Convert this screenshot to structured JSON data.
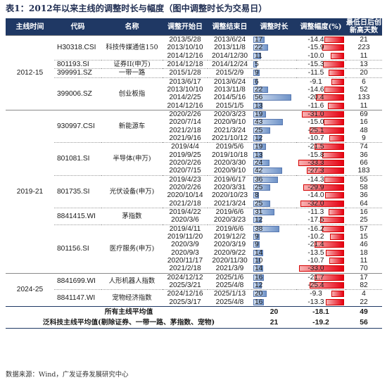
{
  "title": "表1：2012年以来主线的调整时长与幅度（图中调整时长为交易日）",
  "headers": [
    "主线时间",
    "代码",
    "名称",
    "调整开始日",
    "调整结束日",
    "调整时长",
    "调整幅度(%)",
    "最低日后创新高天数"
  ],
  "groups": [
    {
      "period": "2012-15",
      "indices": [
        {
          "code": "H30318.CSI",
          "name": "科技传媒通信150",
          "rows": [
            {
              "start": "2013/5/28",
              "end": "2013/6/24",
              "duration": 17,
              "amp": "-14.4",
              "amp_value": -14.4,
              "newhigh": "21"
            },
            {
              "start": "2013/10/10",
              "end": "2013/11/8",
              "duration": 22,
              "amp": "-15.9",
              "amp_value": -15.9,
              "newhigh": "223"
            },
            {
              "start": "2014/12/16",
              "end": "2014/12/30",
              "duration": 11,
              "amp": "-10.0",
              "amp_value": -10.0,
              "newhigh": "11"
            }
          ]
        },
        {
          "code": "801193.SI",
          "name": "证券II(申万)",
          "rows": [
            {
              "start": "2014/12/18",
              "end": "2014/12/24",
              "duration": 5,
              "amp": "-15.3",
              "amp_value": -15.3,
              "newhigh": "13"
            }
          ]
        },
        {
          "code": "399991.SZ",
          "name": "一带一路",
          "rows": [
            {
              "start": "2015/1/28",
              "end": "2015/2/9",
              "duration": 9,
              "amp": "-11.5",
              "amp_value": -11.5,
              "newhigh": "20"
            }
          ]
        },
        {
          "code": "399006.SZ",
          "name": "创业板指",
          "rows": [
            {
              "start": "2013/6/17",
              "end": "2013/6/24",
              "duration": 6,
              "amp": "-9.1",
              "amp_value": -9.1,
              "newhigh": "6"
            },
            {
              "start": "2013/10/10",
              "end": "2013/11/8",
              "duration": 22,
              "amp": "-14.6",
              "amp_value": -14.6,
              "newhigh": "52"
            },
            {
              "start": "2014/2/25",
              "end": "2014/5/16",
              "duration": 56,
              "amp": "-20.4",
              "amp_value": -20.4,
              "newhigh": "133"
            },
            {
              "start": "2014/12/16",
              "end": "2015/1/5",
              "duration": 13,
              "amp": "-11.6",
              "amp_value": -11.6,
              "newhigh": "11"
            }
          ]
        }
      ]
    },
    {
      "period": "2019-21",
      "indices": [
        {
          "code": "930997.CSI",
          "name": "新能源车",
          "rows": [
            {
              "start": "2020/2/26",
              "end": "2020/3/23",
              "duration": 19,
              "amp": "-31.0",
              "amp_value": -31.0,
              "newhigh": "69"
            },
            {
              "start": "2020/7/14",
              "end": "2020/9/10",
              "duration": 43,
              "amp": "-15.0",
              "amp_value": -15.0,
              "newhigh": "16"
            },
            {
              "start": "2021/2/18",
              "end": "2021/3/24",
              "duration": 25,
              "amp": "-25.1",
              "amp_value": -25.1,
              "newhigh": "48"
            },
            {
              "start": "2021/9/16",
              "end": "2021/10/12",
              "duration": 12,
              "amp": "-10.7",
              "amp_value": -10.7,
              "newhigh": "9"
            }
          ]
        },
        {
          "code": "801081.SI",
          "name": "半导体(申万)",
          "rows": [
            {
              "start": "2019/4/4",
              "end": "2019/5/6",
              "duration": 19,
              "amp": "-21.5",
              "amp_value": -21.5,
              "newhigh": "74"
            },
            {
              "start": "2019/9/25",
              "end": "2019/10/18",
              "duration": 13,
              "amp": "-15.8",
              "amp_value": -15.8,
              "newhigh": "36"
            },
            {
              "start": "2020/2/26",
              "end": "2020/3/30",
              "duration": 24,
              "amp": "-33.3",
              "amp_value": -33.3,
              "newhigh": "66"
            },
            {
              "start": "2020/7/15",
              "end": "2020/9/10",
              "duration": 42,
              "amp": "-27.3",
              "amp_value": -27.3,
              "newhigh": "183"
            }
          ]
        },
        {
          "code": "801735.SI",
          "name": "光伏设备(申万)",
          "rows": [
            {
              "start": "2019/4/23",
              "end": "2019/6/17",
              "duration": 36,
              "amp": "-14.3",
              "amp_value": -14.3,
              "newhigh": "55"
            },
            {
              "start": "2020/2/26",
              "end": "2020/3/31",
              "duration": 25,
              "amp": "-29.9",
              "amp_value": -29.9,
              "newhigh": "58"
            },
            {
              "start": "2020/10/14",
              "end": "2020/10/23",
              "duration": 8,
              "amp": "-14.0",
              "amp_value": -14.0,
              "newhigh": "36"
            },
            {
              "start": "2021/2/18",
              "end": "2021/3/24",
              "duration": 25,
              "amp": "-32.0",
              "amp_value": -32.0,
              "newhigh": "64"
            }
          ]
        },
        {
          "code": "8841415.WI",
          "name": "茅指数",
          "rows": [
            {
              "start": "2019/4/22",
              "end": "2019/6/6",
              "duration": 31,
              "amp": "-11.3",
              "amp_value": -11.3,
              "newhigh": "16"
            },
            {
              "start": "2020/3/6",
              "end": "2020/3/23",
              "duration": 12,
              "amp": "-17.5",
              "amp_value": -17.5,
              "newhigh": "25"
            }
          ]
        },
        {
          "code": "801156.SI",
          "name": "医疗服务(申万)",
          "rows": [
            {
              "start": "2019/4/11",
              "end": "2019/6/6",
              "duration": 38,
              "amp": "-16.2",
              "amp_value": -16.2,
              "newhigh": "57"
            },
            {
              "start": "2019/11/20",
              "end": "2019/12/2",
              "duration": 9,
              "amp": "-10.2",
              "amp_value": -10.2,
              "newhigh": "15"
            },
            {
              "start": "2020/3/9",
              "end": "2020/3/19",
              "duration": 9,
              "amp": "-21.4",
              "amp_value": -21.4,
              "newhigh": "46"
            },
            {
              "start": "2020/9/3",
              "end": "2020/9/22",
              "duration": 14,
              "amp": "-13.5",
              "amp_value": -13.5,
              "newhigh": "18"
            },
            {
              "start": "2020/11/17",
              "end": "2020/11/30",
              "duration": 10,
              "amp": "-10.7",
              "amp_value": -10.7,
              "newhigh": "11"
            },
            {
              "start": "2021/2/18",
              "end": "2021/3/9",
              "duration": 14,
              "amp": "-33.0",
              "amp_value": -33.0,
              "newhigh": "70"
            }
          ]
        }
      ]
    },
    {
      "period": "2024-25",
      "indices": [
        {
          "code": "8841699.WI",
          "name": "人形机器人指数",
          "rows": [
            {
              "start": "2024/12/12",
              "end": "2025/1/6",
              "duration": 16,
              "amp": "-21.7",
              "amp_value": -21.7,
              "newhigh": "17"
            },
            {
              "start": "2025/3/21",
              "end": "2025/4/8",
              "duration": 12,
              "amp": "-25.4",
              "amp_value": -25.4,
              "newhigh": "82"
            }
          ]
        },
        {
          "code": "8841147.WI",
          "name": "宠物经济指数",
          "rows": [
            {
              "start": "2024/12/16",
              "end": "2025/1/13",
              "duration": 20,
              "amp": "-9.3",
              "amp_value": -9.3,
              "newhigh": "4"
            },
            {
              "start": "2025/3/17",
              "end": "2025/4/8",
              "duration": 16,
              "amp": "-13.3",
              "amp_value": -13.3,
              "newhigh": "22"
            }
          ]
        }
      ]
    }
  ],
  "summary": [
    {
      "label": "所有主线平均值",
      "duration": "20",
      "amp": "-18.1",
      "newhigh": "49"
    },
    {
      "label": "泛科技主线平均值(剔除证券、一带一路、茅指数、宠物)",
      "duration": "21",
      "amp": "-19.2",
      "newhigh": "56"
    }
  ],
  "scale": {
    "duration_max": 60,
    "amp_max": 34
  },
  "colors": {
    "header_bg": "#1f3864",
    "duration_bar": "#6f93c8",
    "amp_bar": "#e60012"
  },
  "source": "数据来源：Wind，广发证券发展研究中心"
}
